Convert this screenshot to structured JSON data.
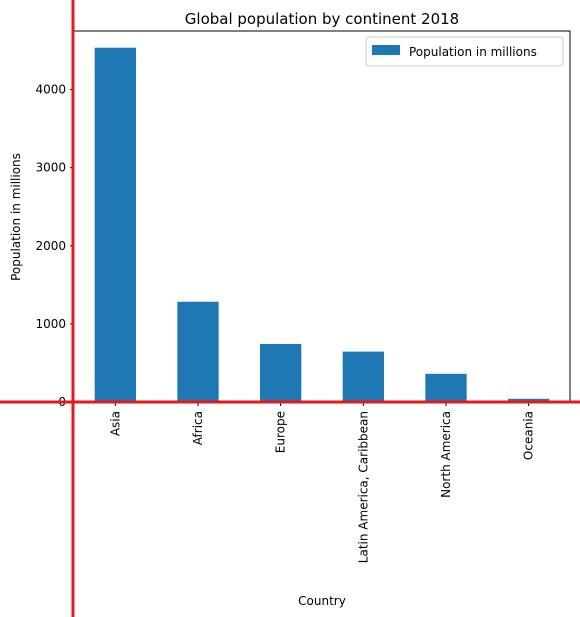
{
  "chart_data": {
    "type": "bar",
    "title": "Global population by continent 2018",
    "xlabel": "Country",
    "ylabel": "Population in millions",
    "categories": [
      "Asia",
      "Africa",
      "Europe",
      "Latin America, Caribbean",
      "North America",
      "Oceania"
    ],
    "series": [
      {
        "name": "Population in millions",
        "values": [
          4536,
          1284,
          743,
          645,
          361,
          41
        ]
      }
    ],
    "ylim": [
      0,
      4750
    ],
    "yticks": [
      0,
      1000,
      2000,
      3000,
      4000
    ],
    "grid": false,
    "legend": "top-right"
  },
  "colors": {
    "bar": "#1f77b4",
    "annotation_lines": "#e31a1c"
  }
}
